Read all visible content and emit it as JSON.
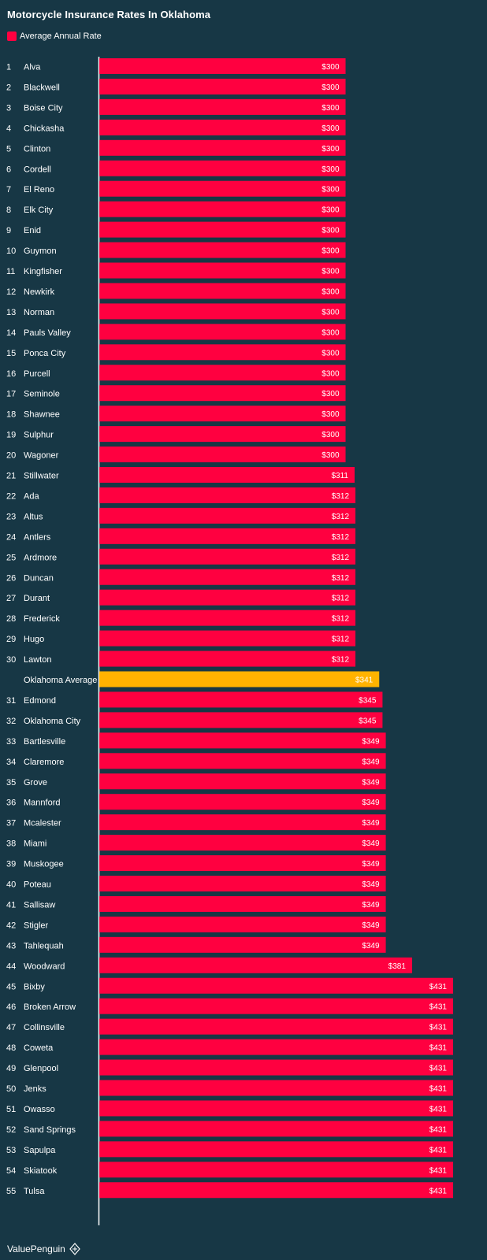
{
  "header": {
    "title": "Motorcycle Insurance Rates In Oklahoma"
  },
  "legend": {
    "label": "Average Annual Rate",
    "color": "#ff0040"
  },
  "brand": {
    "name": "ValuePenguin",
    "icon": "penguin-logo-icon"
  },
  "colors": {
    "background": "#173745",
    "bar": "#ff0040",
    "average_bar": "#ffb300",
    "axis": "#ffffff"
  },
  "chart_data": {
    "type": "bar",
    "orientation": "horizontal",
    "title": "Motorcycle Insurance Rates In Oklahoma",
    "xlabel": "",
    "ylabel": "",
    "xlim": [
      0,
      431
    ],
    "grid": false,
    "legend_position": "top-left",
    "series": [
      {
        "name": "Average Annual Rate",
        "rows": [
          {
            "rank": "1",
            "city": "Alva",
            "value": 300,
            "label": "$300"
          },
          {
            "rank": "2",
            "city": "Blackwell",
            "value": 300,
            "label": "$300"
          },
          {
            "rank": "3",
            "city": "Boise City",
            "value": 300,
            "label": "$300"
          },
          {
            "rank": "4",
            "city": "Chickasha",
            "value": 300,
            "label": "$300"
          },
          {
            "rank": "5",
            "city": "Clinton",
            "value": 300,
            "label": "$300"
          },
          {
            "rank": "6",
            "city": "Cordell",
            "value": 300,
            "label": "$300"
          },
          {
            "rank": "7",
            "city": "El Reno",
            "value": 300,
            "label": "$300"
          },
          {
            "rank": "8",
            "city": "Elk City",
            "value": 300,
            "label": "$300"
          },
          {
            "rank": "9",
            "city": "Enid",
            "value": 300,
            "label": "$300"
          },
          {
            "rank": "10",
            "city": "Guymon",
            "value": 300,
            "label": "$300"
          },
          {
            "rank": "11",
            "city": "Kingfisher",
            "value": 300,
            "label": "$300"
          },
          {
            "rank": "12",
            "city": "Newkirk",
            "value": 300,
            "label": "$300"
          },
          {
            "rank": "13",
            "city": "Norman",
            "value": 300,
            "label": "$300"
          },
          {
            "rank": "14",
            "city": "Pauls Valley",
            "value": 300,
            "label": "$300"
          },
          {
            "rank": "15",
            "city": "Ponca City",
            "value": 300,
            "label": "$300"
          },
          {
            "rank": "16",
            "city": "Purcell",
            "value": 300,
            "label": "$300"
          },
          {
            "rank": "17",
            "city": "Seminole",
            "value": 300,
            "label": "$300"
          },
          {
            "rank": "18",
            "city": "Shawnee",
            "value": 300,
            "label": "$300"
          },
          {
            "rank": "19",
            "city": "Sulphur",
            "value": 300,
            "label": "$300"
          },
          {
            "rank": "20",
            "city": "Wagoner",
            "value": 300,
            "label": "$300"
          },
          {
            "rank": "21",
            "city": "Stillwater",
            "value": 311,
            "label": "$311"
          },
          {
            "rank": "22",
            "city": "Ada",
            "value": 312,
            "label": "$312"
          },
          {
            "rank": "23",
            "city": "Altus",
            "value": 312,
            "label": "$312"
          },
          {
            "rank": "24",
            "city": "Antlers",
            "value": 312,
            "label": "$312"
          },
          {
            "rank": "25",
            "city": "Ardmore",
            "value": 312,
            "label": "$312"
          },
          {
            "rank": "26",
            "city": "Duncan",
            "value": 312,
            "label": "$312"
          },
          {
            "rank": "27",
            "city": "Durant",
            "value": 312,
            "label": "$312"
          },
          {
            "rank": "28",
            "city": "Frederick",
            "value": 312,
            "label": "$312"
          },
          {
            "rank": "29",
            "city": "Hugo",
            "value": 312,
            "label": "$312"
          },
          {
            "rank": "30",
            "city": "Lawton",
            "value": 312,
            "label": "$312"
          },
          {
            "rank": "",
            "city": "Oklahoma Average",
            "value": 341,
            "label": "$341",
            "highlight": true
          },
          {
            "rank": "31",
            "city": "Edmond",
            "value": 345,
            "label": "$345"
          },
          {
            "rank": "32",
            "city": "Oklahoma City",
            "value": 345,
            "label": "$345"
          },
          {
            "rank": "33",
            "city": "Bartlesville",
            "value": 349,
            "label": "$349"
          },
          {
            "rank": "34",
            "city": "Claremore",
            "value": 349,
            "label": "$349"
          },
          {
            "rank": "35",
            "city": "Grove",
            "value": 349,
            "label": "$349"
          },
          {
            "rank": "36",
            "city": "Mannford",
            "value": 349,
            "label": "$349"
          },
          {
            "rank": "37",
            "city": "Mcalester",
            "value": 349,
            "label": "$349"
          },
          {
            "rank": "38",
            "city": "Miami",
            "value": 349,
            "label": "$349"
          },
          {
            "rank": "39",
            "city": "Muskogee",
            "value": 349,
            "label": "$349"
          },
          {
            "rank": "40",
            "city": "Poteau",
            "value": 349,
            "label": "$349"
          },
          {
            "rank": "41",
            "city": "Sallisaw",
            "value": 349,
            "label": "$349"
          },
          {
            "rank": "42",
            "city": "Stigler",
            "value": 349,
            "label": "$349"
          },
          {
            "rank": "43",
            "city": "Tahlequah",
            "value": 349,
            "label": "$349"
          },
          {
            "rank": "44",
            "city": "Woodward",
            "value": 381,
            "label": "$381"
          },
          {
            "rank": "45",
            "city": "Bixby",
            "value": 431,
            "label": "$431"
          },
          {
            "rank": "46",
            "city": "Broken Arrow",
            "value": 431,
            "label": "$431"
          },
          {
            "rank": "47",
            "city": "Collinsville",
            "value": 431,
            "label": "$431"
          },
          {
            "rank": "48",
            "city": "Coweta",
            "value": 431,
            "label": "$431"
          },
          {
            "rank": "49",
            "city": "Glenpool",
            "value": 431,
            "label": "$431"
          },
          {
            "rank": "50",
            "city": "Jenks",
            "value": 431,
            "label": "$431"
          },
          {
            "rank": "51",
            "city": "Owasso",
            "value": 431,
            "label": "$431"
          },
          {
            "rank": "52",
            "city": "Sand Springs",
            "value": 431,
            "label": "$431"
          },
          {
            "rank": "53",
            "city": "Sapulpa",
            "value": 431,
            "label": "$431"
          },
          {
            "rank": "54",
            "city": "Skiatook",
            "value": 431,
            "label": "$431"
          },
          {
            "rank": "55",
            "city": "Tulsa",
            "value": 431,
            "label": "$431"
          }
        ]
      }
    ]
  }
}
